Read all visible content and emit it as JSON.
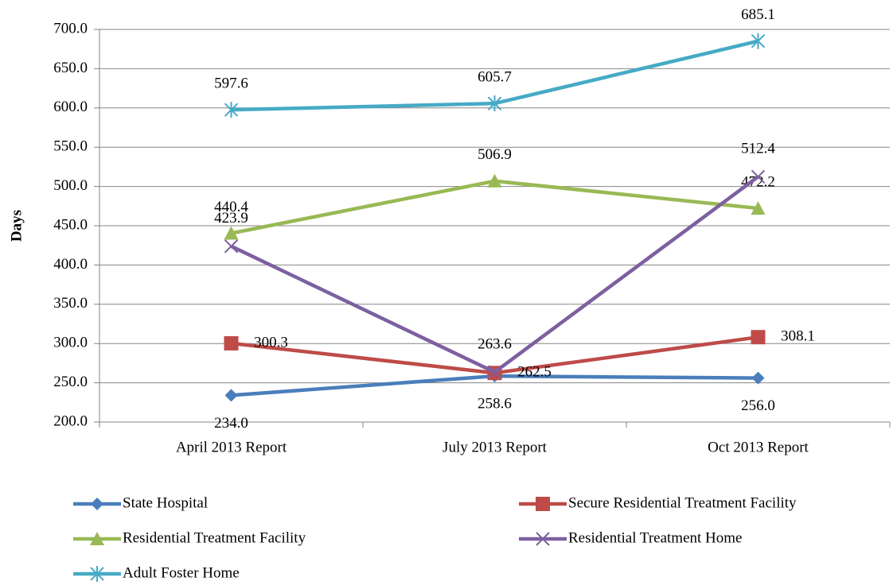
{
  "chart_data": {
    "type": "line",
    "y_label": "Days",
    "categories": [
      "April 2013 Report",
      "July 2013 Report",
      "Oct 2013 Report"
    ],
    "series": [
      {
        "name": "State Hospital",
        "color": "#4a7ebb",
        "marker": "diamond",
        "values": [
          234.0,
          258.6,
          256.0
        ],
        "value_labels": [
          "234.0",
          "258.6",
          "256.0"
        ]
      },
      {
        "name": "Secure Residential Treatment Facility",
        "color": "#be4b48",
        "marker": "square",
        "values": [
          300.3,
          262.5,
          308.1
        ],
        "value_labels": [
          "300.3",
          "262.5",
          "308.1"
        ]
      },
      {
        "name": "Residential Treatment Facility",
        "color": "#98b954",
        "marker": "triangle",
        "values": [
          440.4,
          506.9,
          472.2
        ],
        "value_labels": [
          "440.4",
          "506.9",
          "472.2"
        ]
      },
      {
        "name": "Residential Treatment Home",
        "color": "#7d60a0",
        "marker": "x",
        "values": [
          423.9,
          263.6,
          512.4
        ],
        "value_labels": [
          "423.9",
          "263.6",
          "512.4"
        ]
      },
      {
        "name": "Adult Foster Home",
        "color": "#46aac5",
        "marker": "star",
        "values": [
          597.6,
          605.7,
          685.1
        ],
        "value_labels": [
          "597.6",
          "605.7",
          "685.1"
        ]
      }
    ],
    "ylim": [
      200,
      700
    ],
    "yticks": [
      {
        "value": 200,
        "label": "200.0"
      },
      {
        "value": 250,
        "label": "250.0"
      },
      {
        "value": 300,
        "label": "300.0"
      },
      {
        "value": 350,
        "label": "350.0"
      },
      {
        "value": 400,
        "label": "400.0"
      },
      {
        "value": 450,
        "label": "450.0"
      },
      {
        "value": 500,
        "label": "500.0"
      },
      {
        "value": 550,
        "label": "550.0"
      },
      {
        "value": 600,
        "label": "600.0"
      },
      {
        "value": 650,
        "label": "650.0"
      },
      {
        "value": 700,
        "label": "700.0"
      }
    ],
    "grid": true,
    "legend": "bottom"
  }
}
